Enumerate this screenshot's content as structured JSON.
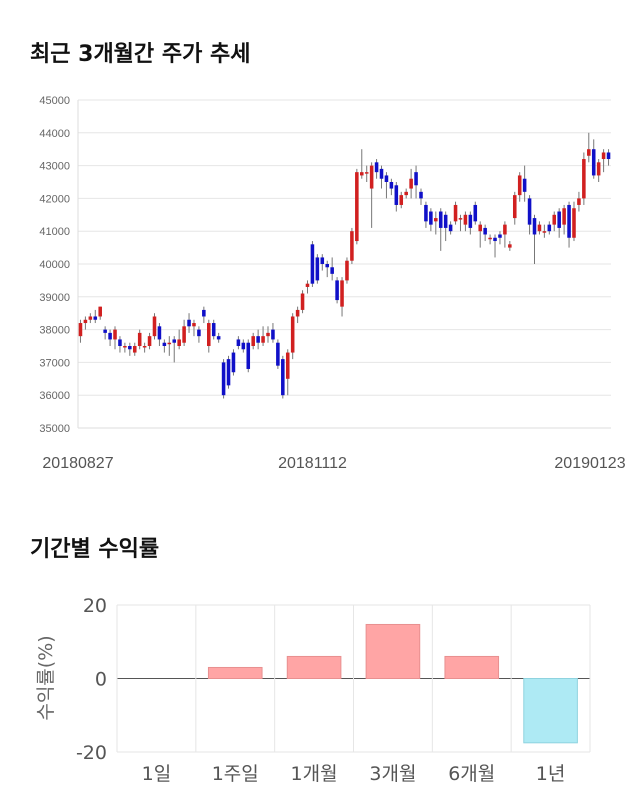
{
  "section1": {
    "title": "최근 3개월간 주가 추세"
  },
  "section2": {
    "title": "기간별 수익률"
  },
  "chart_data": [
    {
      "type": "candlestick",
      "ylim": [
        35000,
        45000
      ],
      "y_ticks": [
        45000,
        44000,
        43000,
        42000,
        41000,
        40000,
        39000,
        38000,
        37000,
        36000,
        35000
      ],
      "x_labels": [
        "20180827",
        "20181112",
        "20190123"
      ],
      "grid": true,
      "colors": {
        "up": "#d12020",
        "down": "#1010c8"
      },
      "candles": [
        [
          37800,
          38200,
          37600,
          38300
        ],
        [
          38200,
          38300,
          38000,
          38400
        ],
        [
          38300,
          38400,
          38200,
          38500
        ],
        [
          38400,
          38300,
          38200,
          38600
        ],
        [
          38400,
          38700,
          38300,
          38700
        ],
        [
          38000,
          37900,
          37700,
          38100
        ],
        [
          37900,
          37700,
          37500,
          38000
        ],
        [
          37700,
          38000,
          37400,
          38100
        ],
        [
          37700,
          37500,
          37300,
          37800
        ],
        [
          37500,
          37500,
          37300,
          37600
        ],
        [
          37500,
          37400,
          37200,
          37600
        ],
        [
          37300,
          37500,
          37200,
          37600
        ],
        [
          37500,
          37900,
          37400,
          38000
        ],
        [
          37500,
          37500,
          37300,
          37600
        ],
        [
          37500,
          37800,
          37400,
          37900
        ],
        [
          37800,
          38400,
          37700,
          38500
        ],
        [
          38100,
          37700,
          37500,
          38200
        ],
        [
          37600,
          37500,
          37300,
          37700
        ],
        [
          37600,
          37600,
          37200,
          37800
        ],
        [
          37700,
          37600,
          37000,
          37800
        ],
        [
          37500,
          37700,
          37400,
          38000
        ],
        [
          37600,
          38100,
          37500,
          38300
        ],
        [
          38300,
          38100,
          37900,
          38500
        ],
        [
          38100,
          38200,
          37800,
          38300
        ],
        [
          38000,
          37800,
          37600,
          38100
        ],
        [
          38600,
          38400,
          38200,
          38700
        ],
        [
          37500,
          38200,
          37300,
          38300
        ],
        [
          38200,
          37800,
          37700,
          38300
        ],
        [
          37800,
          37700,
          37600,
          37900
        ],
        [
          37000,
          36000,
          35900,
          37100
        ],
        [
          37100,
          36300,
          36200,
          37200
        ],
        [
          37300,
          36700,
          36600,
          37400
        ],
        [
          37700,
          37500,
          37400,
          37800
        ],
        [
          37600,
          37400,
          37300,
          37700
        ],
        [
          37600,
          36800,
          36700,
          37700
        ],
        [
          37500,
          37800,
          37400,
          37900
        ],
        [
          37800,
          37600,
          37400,
          38000
        ],
        [
          37600,
          37800,
          37500,
          38100
        ],
        [
          37800,
          37900,
          37600,
          38100
        ],
        [
          38000,
          37700,
          37600,
          38200
        ],
        [
          37600,
          36900,
          36800,
          37700
        ],
        [
          37100,
          36000,
          35900,
          37200
        ],
        [
          36500,
          37300,
          36000,
          37400
        ],
        [
          37300,
          38400,
          37100,
          38500
        ],
        [
          38400,
          38600,
          38200,
          38700
        ],
        [
          38600,
          39100,
          38500,
          39200
        ],
        [
          39300,
          39400,
          39100,
          39500
        ],
        [
          40600,
          39400,
          39300,
          40700
        ],
        [
          40200,
          39500,
          39400,
          40300
        ],
        [
          40200,
          40000,
          39800,
          40300
        ],
        [
          40000,
          39900,
          39600,
          40100
        ],
        [
          39900,
          39700,
          39500,
          40200
        ],
        [
          39500,
          38900,
          38800,
          39600
        ],
        [
          38700,
          39500,
          38400,
          39600
        ],
        [
          39500,
          40100,
          39400,
          40200
        ],
        [
          40100,
          41000,
          40000,
          41100
        ],
        [
          40700,
          42800,
          40600,
          42900
        ],
        [
          42700,
          42800,
          42600,
          43500
        ],
        [
          42800,
          42800,
          42500,
          43000
        ],
        [
          42300,
          43000,
          41100,
          43100
        ],
        [
          43100,
          42800,
          42600,
          43200
        ],
        [
          42900,
          42600,
          42300,
          43000
        ],
        [
          42700,
          42500,
          42000,
          42800
        ],
        [
          42500,
          42300,
          42100,
          42600
        ],
        [
          42400,
          41800,
          41600,
          42500
        ],
        [
          41800,
          42100,
          41700,
          42200
        ],
        [
          42100,
          42200,
          42000,
          42300
        ],
        [
          42300,
          42600,
          42000,
          42900
        ],
        [
          42800,
          42400,
          42000,
          43000
        ],
        [
          42200,
          42000,
          41800,
          42300
        ],
        [
          41800,
          41300,
          41100,
          41900
        ],
        [
          41600,
          41200,
          41000,
          41700
        ],
        [
          41300,
          41400,
          40900,
          41600
        ],
        [
          41600,
          41100,
          40400,
          41700
        ],
        [
          41500,
          41100,
          40700,
          41600
        ],
        [
          41200,
          41000,
          40900,
          41300
        ],
        [
          41300,
          41800,
          41200,
          41900
        ],
        [
          41400,
          41400,
          41000,
          41500
        ],
        [
          41200,
          41500,
          41000,
          41600
        ],
        [
          41500,
          41100,
          40900,
          41600
        ],
        [
          41800,
          41300,
          41200,
          41900
        ],
        [
          41000,
          41200,
          40500,
          41300
        ],
        [
          41100,
          40900,
          40700,
          41200
        ],
        [
          40800,
          40800,
          40600,
          40900
        ],
        [
          40800,
          40700,
          40200,
          40900
        ],
        [
          40900,
          40800,
          40600,
          41000
        ],
        [
          40900,
          41200,
          40500,
          41300
        ],
        [
          40500,
          40600,
          40400,
          40700
        ],
        [
          41400,
          42100,
          41200,
          42200
        ],
        [
          42100,
          42700,
          41900,
          42800
        ],
        [
          42600,
          42200,
          41900,
          43000
        ],
        [
          42000,
          41200,
          40900,
          42100
        ],
        [
          41400,
          40900,
          40000,
          41500
        ],
        [
          41000,
          41200,
          40900,
          41300
        ],
        [
          41000,
          41000,
          40800,
          41200
        ],
        [
          41200,
          41000,
          40900,
          41300
        ],
        [
          41200,
          41500,
          41000,
          41600
        ],
        [
          41600,
          41100,
          40800,
          41700
        ],
        [
          41200,
          41700,
          40900,
          41800
        ],
        [
          41800,
          40800,
          40500,
          41900
        ],
        [
          40800,
          41700,
          40700,
          41900
        ],
        [
          41800,
          42000,
          41600,
          42200
        ],
        [
          42000,
          43200,
          41800,
          43400
        ],
        [
          43300,
          43500,
          43100,
          44000
        ],
        [
          43500,
          42700,
          42600,
          43800
        ],
        [
          42700,
          43100,
          42500,
          43200
        ],
        [
          43200,
          43400,
          42800,
          43500
        ],
        [
          43400,
          43200,
          43000,
          43500
        ]
      ]
    },
    {
      "type": "bar",
      "categories": [
        "1일",
        "1주일",
        "1개월",
        "3개월",
        "6개월",
        "1년"
      ],
      "values": [
        0,
        3,
        6,
        14.7,
        6,
        -17.5
      ],
      "ylabel": "수익률(%)",
      "ylim": [
        -20,
        20
      ],
      "y_ticks": [
        20,
        0,
        -20
      ],
      "colors": {
        "positive": "#ffa5a5",
        "negative": "#aeeaf4"
      }
    }
  ]
}
